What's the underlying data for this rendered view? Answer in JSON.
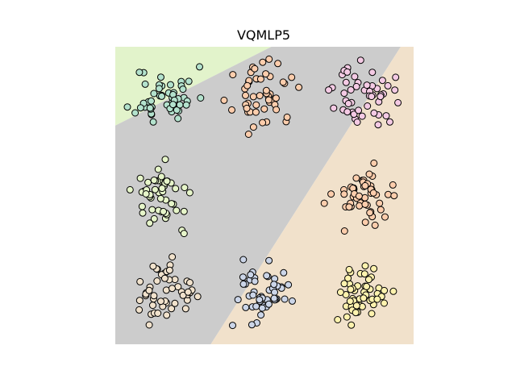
{
  "chart_data": {
    "type": "scatter",
    "title": "VQMLP5",
    "xlim": [
      -0.5,
      2.5
    ],
    "ylim": [
      -0.5,
      2.5
    ],
    "regions": [
      {
        "color": "#e2f3cb",
        "polygon": [
          [
            -0.5,
            2.5
          ],
          [
            1.07,
            2.5
          ],
          [
            -0.5,
            1.705
          ]
        ]
      },
      {
        "color": "#cccccc",
        "polygon": [
          [
            1.07,
            2.5
          ],
          [
            2.37,
            2.5
          ],
          [
            0.46,
            -0.5
          ],
          [
            -0.5,
            -0.5
          ],
          [
            -0.5,
            1.705
          ]
        ]
      },
      {
        "color": "#f1e1cb",
        "polygon": [
          [
            2.37,
            2.5
          ],
          [
            2.5,
            2.5
          ],
          [
            2.5,
            -0.5
          ],
          [
            0.46,
            -0.5
          ]
        ]
      }
    ],
    "clusters": [
      {
        "center": [
          0,
          2
        ],
        "color": "#b3e2cd",
        "n": 50,
        "spread": 0.15,
        "seed": 11
      },
      {
        "center": [
          1,
          2
        ],
        "color": "#fdcdac",
        "n": 50,
        "spread": 0.15,
        "seed": 23
      },
      {
        "center": [
          2,
          2
        ],
        "color": "#f4cae4",
        "n": 50,
        "spread": 0.15,
        "seed": 37
      },
      {
        "center": [
          0,
          1
        ],
        "color": "#e6f5c9",
        "n": 50,
        "spread": 0.15,
        "seed": 41
      },
      {
        "center": [
          2,
          1
        ],
        "color": "#fdcdac",
        "n": 50,
        "spread": 0.15,
        "seed": 53
      },
      {
        "center": [
          0,
          0
        ],
        "color": "#f1e2cc",
        "n": 50,
        "spread": 0.15,
        "seed": 67
      },
      {
        "center": [
          1,
          0
        ],
        "color": "#cbd5e8",
        "n": 50,
        "spread": 0.15,
        "seed": 71
      },
      {
        "center": [
          2,
          0
        ],
        "color": "#fff2ae",
        "n": 50,
        "spread": 0.15,
        "seed": 89
      }
    ]
  }
}
